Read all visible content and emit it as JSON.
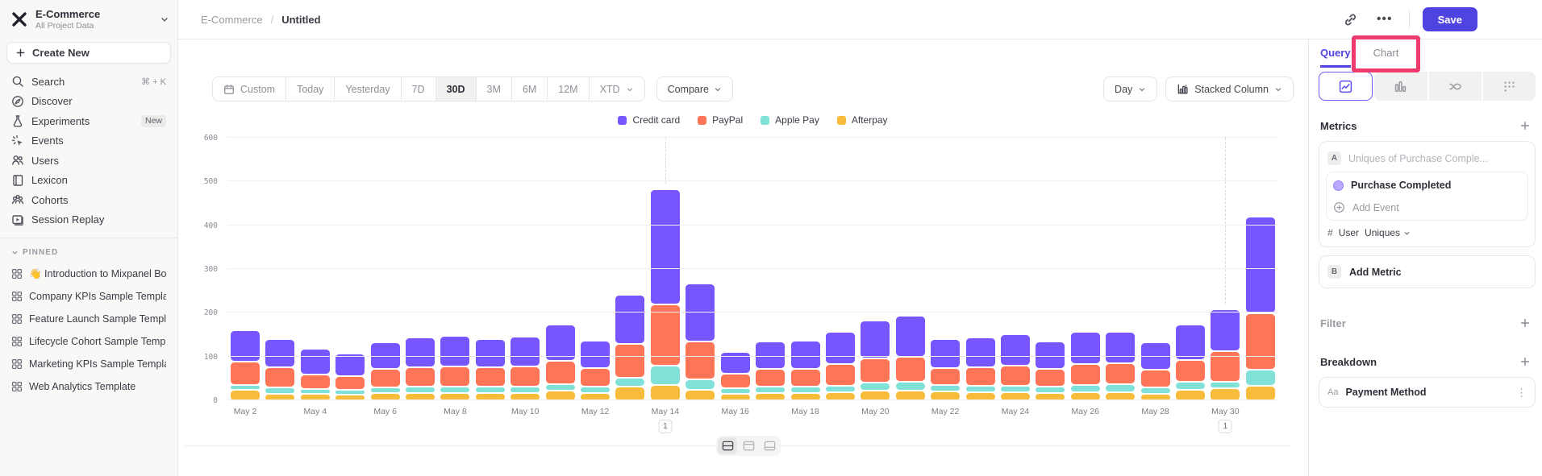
{
  "workspace": {
    "name": "E-Commerce",
    "subtitle": "All Project Data"
  },
  "sidebar": {
    "create_new_label": "Create New",
    "items": [
      {
        "label": "Search",
        "icon": "search-icon",
        "hint": "⌘ + K"
      },
      {
        "label": "Discover",
        "icon": "discover-icon"
      },
      {
        "label": "Experiments",
        "icon": "experiments-icon",
        "badge": "New"
      },
      {
        "label": "Events",
        "icon": "events-icon"
      },
      {
        "label": "Users",
        "icon": "users-icon"
      },
      {
        "label": "Lexicon",
        "icon": "lexicon-icon"
      },
      {
        "label": "Cohorts",
        "icon": "cohorts-icon"
      },
      {
        "label": "Session Replay",
        "icon": "session-replay-icon"
      }
    ],
    "pinned_label": "PINNED",
    "pinned": [
      {
        "label": "👋 Introduction to Mixpanel Bo"
      },
      {
        "label": "Company KPIs Sample Templat"
      },
      {
        "label": "Feature Launch Sample Templa"
      },
      {
        "label": "Lifecycle Cohort Sample Temp"
      },
      {
        "label": "Marketing KPIs Sample Templat"
      },
      {
        "label": "Web Analytics Template"
      }
    ]
  },
  "topbar": {
    "breadcrumb": [
      "E-Commerce",
      "Untitled"
    ],
    "save_label": "Save"
  },
  "controls": {
    "date_ranges": [
      "Custom",
      "Today",
      "Yesterday",
      "7D",
      "30D",
      "3M",
      "6M",
      "12M",
      "XTD"
    ],
    "active_range": "30D",
    "compare_label": "Compare",
    "granularity": "Day",
    "chart_type_label": "Stacked Column"
  },
  "right_panel": {
    "tabs": [
      "Query",
      "Chart"
    ],
    "active_tab": "Query",
    "highlight_color": "#ee3a6d",
    "viz_tabs": [
      {
        "icon": "line-chart-icon",
        "active": true
      },
      {
        "icon": "bar-columns-icon",
        "active": false
      },
      {
        "icon": "flow-icon",
        "active": false
      },
      {
        "icon": "scatter-grid-icon",
        "active": false
      }
    ],
    "metrics": {
      "title": "Metrics",
      "metric_letter": "A",
      "metric_name": "Uniques of Purchase Comple...",
      "event_name": "Purchase Completed",
      "add_event_label": "Add Event",
      "aggregation_symbol": "#",
      "aggregation_entity": "User",
      "aggregation_type": "Uniques",
      "add_metric_letter": "B",
      "add_metric_label": "Add Metric"
    },
    "filter": {
      "title": "Filter"
    },
    "breakdown": {
      "title": "Breakdown",
      "item_type": "Aa",
      "item_name": "Payment Method"
    }
  },
  "layout_toggles": [
    {
      "icon": "layout-split-icon",
      "active": true
    },
    {
      "icon": "layout-top-icon",
      "active": false
    },
    {
      "icon": "layout-bottom-icon",
      "active": false
    }
  ],
  "accent_color": "#4f44e0",
  "chart_data": {
    "type": "bar",
    "stacked": true,
    "categories": [
      "May 2",
      "May 3",
      "May 4",
      "May 5",
      "May 6",
      "May 7",
      "May 8",
      "May 9",
      "May 10",
      "May 11",
      "May 12",
      "May 13",
      "May 14",
      "May 15",
      "May 16",
      "May 17",
      "May 18",
      "May 19",
      "May 20",
      "May 21",
      "May 22",
      "May 23",
      "May 24",
      "May 25",
      "May 26",
      "May 27",
      "May 28",
      "May 29",
      "May 30",
      "May 31"
    ],
    "x_labels_every": 2,
    "series": [
      {
        "name": "Credit card",
        "color": "#7856ff",
        "values": [
          70,
          62,
          55,
          50,
          58,
          65,
          68,
          62,
          66,
          80,
          60,
          110,
          262,
          130,
          48,
          60,
          62,
          72,
          85,
          92,
          64,
          65,
          68,
          60,
          72,
          70,
          60,
          78,
          95,
          220
        ]
      },
      {
        "name": "PayPal",
        "color": "#ff7557",
        "values": [
          50,
          42,
          30,
          28,
          38,
          40,
          42,
          40,
          42,
          50,
          40,
          75,
          140,
          85,
          30,
          38,
          38,
          45,
          52,
          55,
          35,
          38,
          43,
          37,
          44,
          45,
          36,
          47,
          67,
          127
        ]
      },
      {
        "name": "Apple Pay",
        "color": "#80e1d9",
        "values": [
          7,
          12,
          8,
          6,
          10,
          12,
          12,
          12,
          12,
          12,
          11,
          17,
          40,
          20,
          8,
          11,
          11,
          13,
          15,
          16,
          11,
          12,
          13,
          11,
          14,
          14,
          11,
          14,
          10,
          35
        ]
      },
      {
        "name": "Afterpay",
        "color": "#f8bc3b",
        "values": [
          23,
          13,
          13,
          12,
          15,
          15,
          15,
          15,
          15,
          20,
          15,
          30,
          34,
          23,
          14,
          15,
          15,
          16,
          20,
          21,
          19,
          17,
          16,
          15,
          16,
          17,
          14,
          23,
          27,
          31
        ]
      }
    ],
    "ylim": [
      0,
      600
    ],
    "yticks": [
      0,
      100,
      200,
      300,
      400,
      500,
      600
    ],
    "grid": true,
    "legend_position": "top",
    "annotations": [
      {
        "category": "May 14",
        "label": "1"
      },
      {
        "category": "May 30",
        "label": "1"
      }
    ]
  }
}
